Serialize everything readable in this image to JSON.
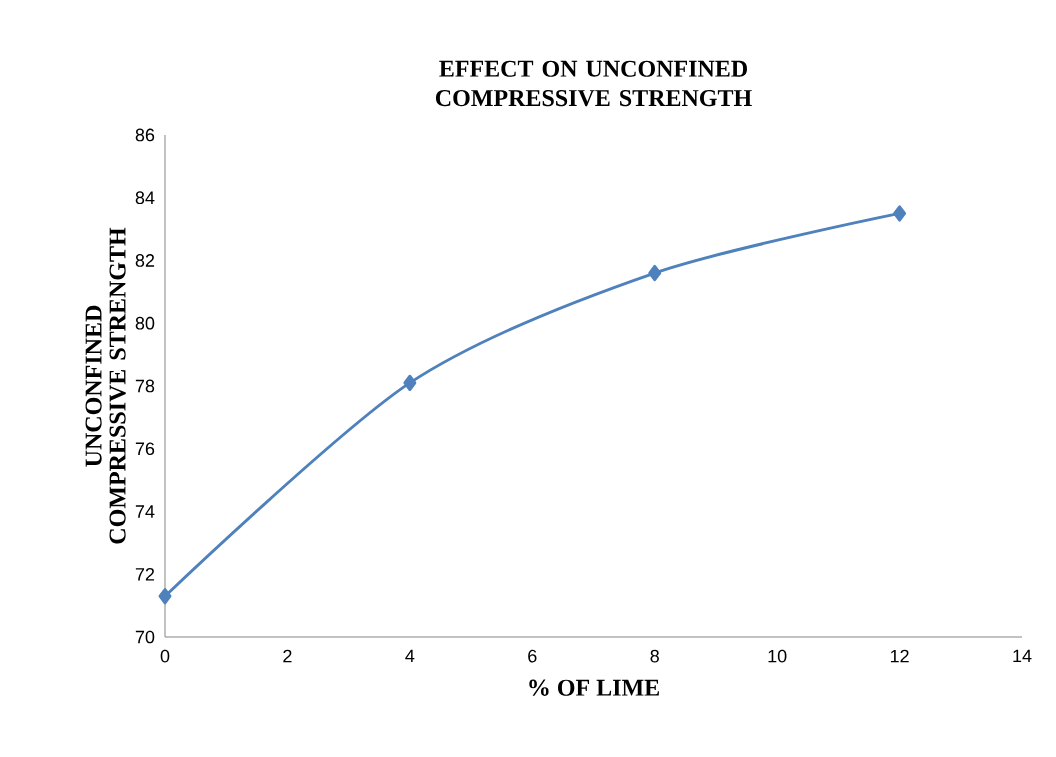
{
  "chart_data": {
    "type": "line",
    "title": "EFFECT ON UNCONFINED COMPRESSIVE STRENGTH",
    "xlabel": "% OF LIME",
    "ylabel": "UNCONFINED COMPRESSIVE STRENGTH",
    "x": [
      0,
      4,
      8,
      12
    ],
    "series": [
      {
        "color": "#4f81bd",
        "values": [
          71.3,
          78.1,
          81.6,
          83.5
        ]
      }
    ],
    "xlim": [
      0,
      14
    ],
    "xticks": [
      0,
      2,
      4,
      6,
      8,
      10,
      12,
      14
    ],
    "ylim": [
      70,
      86
    ],
    "yticks": [
      70,
      72,
      74,
      76,
      78,
      80,
      82,
      84,
      86
    ],
    "grid": false,
    "marker": "diamond",
    "line_style": "solid"
  }
}
